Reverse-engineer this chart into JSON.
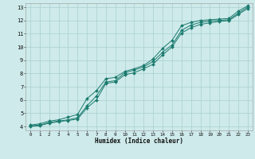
{
  "xlabel": "Humidex (Indice chaleur)",
  "bg_color": "#ceeaea",
  "grid_color": "#aacfcf",
  "line_color": "#1a7a6e",
  "xlim_min": -0.5,
  "xlim_max": 23.5,
  "ylim_min": 3.7,
  "ylim_max": 13.3,
  "xticks": [
    0,
    1,
    2,
    3,
    4,
    5,
    6,
    7,
    8,
    9,
    10,
    11,
    12,
    13,
    14,
    15,
    16,
    17,
    18,
    19,
    20,
    21,
    22,
    23
  ],
  "yticks": [
    4,
    5,
    6,
    7,
    8,
    9,
    10,
    11,
    12,
    13
  ],
  "series1_x": [
    0,
    1,
    2,
    3,
    4,
    5,
    6,
    7,
    8,
    9,
    10,
    11,
    12,
    13,
    14,
    15,
    16,
    17,
    18,
    19,
    20,
    21,
    22,
    23
  ],
  "series1_y": [
    4.1,
    4.2,
    4.4,
    4.5,
    4.7,
    4.9,
    6.1,
    6.7,
    7.6,
    7.7,
    8.15,
    8.35,
    8.6,
    9.1,
    9.9,
    10.5,
    11.6,
    11.85,
    12.0,
    12.05,
    12.1,
    12.15,
    12.7,
    13.1
  ],
  "series2_x": [
    0,
    1,
    2,
    3,
    4,
    5,
    6,
    7,
    8,
    9,
    10,
    11,
    12,
    13,
    14,
    15,
    16,
    17,
    18,
    19,
    20,
    21,
    22,
    23
  ],
  "series2_y": [
    4.05,
    4.1,
    4.3,
    4.4,
    4.5,
    4.65,
    5.55,
    6.3,
    7.35,
    7.45,
    8.05,
    8.25,
    8.5,
    8.9,
    9.6,
    10.15,
    11.25,
    11.65,
    11.85,
    11.95,
    12.0,
    12.05,
    12.55,
    13.0
  ],
  "series3_x": [
    0,
    1,
    2,
    3,
    4,
    5,
    6,
    7,
    8,
    9,
    10,
    11,
    12,
    13,
    14,
    15,
    16,
    17,
    18,
    19,
    20,
    21,
    22,
    23
  ],
  "series3_y": [
    4.0,
    4.05,
    4.25,
    4.35,
    4.45,
    4.55,
    5.4,
    6.0,
    7.25,
    7.35,
    7.9,
    8.05,
    8.35,
    8.7,
    9.4,
    10.0,
    11.05,
    11.45,
    11.7,
    11.82,
    11.92,
    11.98,
    12.45,
    12.9
  ]
}
